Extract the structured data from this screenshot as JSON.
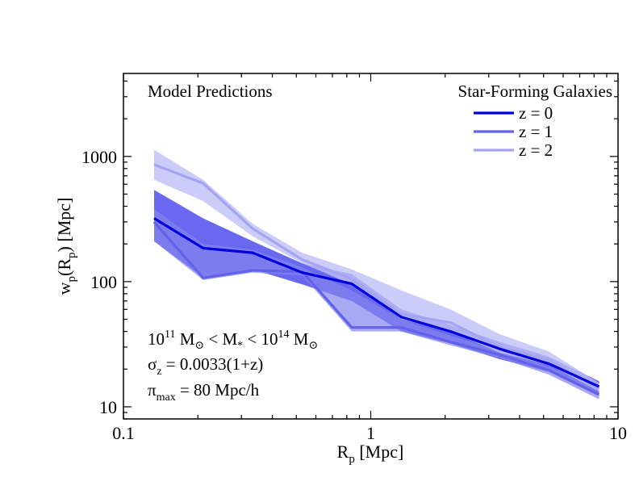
{
  "chart_data": {
    "type": "line",
    "title": "",
    "xlabel": {
      "main": "R",
      "sub": "p",
      "rest": " [Mpc]"
    },
    "ylabel": {
      "pre": "w",
      "sub1": "p",
      "mid": "(R",
      "sub2": "p",
      "post": ") [Mpc]"
    },
    "x_scale": "log",
    "y_scale": "log",
    "xlim": [
      0.1,
      10
    ],
    "ylim": [
      8,
      4600
    ],
    "x_ticks": [
      {
        "value": 0.1,
        "label": "0.1"
      },
      {
        "value": 1,
        "label": "1"
      },
      {
        "value": 10,
        "label": "10"
      }
    ],
    "y_ticks": [
      {
        "value": 10,
        "label": "10"
      },
      {
        "value": 100,
        "label": "100"
      },
      {
        "value": 1000,
        "label": "1000"
      }
    ],
    "grid": false,
    "legend": {
      "placement": "top-right",
      "title": "Star-Forming Galaxies"
    },
    "annotation_top_left": "Model Predictions",
    "annotation_mass": {
      "p1": "10",
      "s1": "11",
      "p2": " M",
      "o1": "⊙",
      "p3": " < M",
      "s2": "*",
      "p4": " < 10",
      "s3": "14",
      "p5": " M",
      "o2": "⊙"
    },
    "annotation_sigma": {
      "pre": "σ",
      "sub": "z",
      "post": " = 0.0033(1+z)"
    },
    "annotation_pi": {
      "pre": "π",
      "sub": "max",
      "post": " = 80 Mpc/h"
    },
    "x": [
      0.133,
      0.21,
      0.333,
      0.528,
      0.838,
      1.33,
      2.1,
      3.33,
      5.28,
      8.38
    ],
    "series": [
      {
        "name": "z = 0",
        "color": "#0000dd",
        "band_color": "#4d4dee",
        "band_opacity": 0.85,
        "values": [
          320,
          185,
          170,
          118,
          96,
          52,
          40,
          29,
          22,
          14.5
        ],
        "lower": [
          210,
          108,
          125,
          95,
          70,
          40,
          32,
          24,
          19,
          12.5
        ],
        "upper": [
          540,
          320,
          210,
          140,
          115,
          60,
          45,
          33,
          25,
          16
        ]
      },
      {
        "name": "z = 1",
        "color": "#6262e8",
        "band_color": "#8585ee",
        "band_opacity": 0.7,
        "values": [
          300,
          107,
          123,
          120,
          43,
          43,
          33,
          26,
          19.5,
          12.5
        ],
        "lower": [
          210,
          103,
          118,
          112,
          40,
          40,
          31,
          24.5,
          18,
          11.5
        ],
        "upper": [
          380,
          200,
          180,
          130,
          85,
          50,
          37,
          28,
          21,
          13.5
        ]
      },
      {
        "name": "z = 2",
        "color": "#a4a4f2",
        "band_color": "#bfbff6",
        "band_opacity": 0.8,
        "values": [
          860,
          610,
          265,
          150,
          105,
          55,
          47,
          30,
          23.5,
          14
        ],
        "lower": [
          650,
          440,
          230,
          140,
          95,
          50,
          40,
          27,
          21.5,
          13.3
        ],
        "upper": [
          1130,
          650,
          290,
          170,
          125,
          85,
          60,
          38,
          27.5,
          15.5
        ]
      }
    ]
  }
}
